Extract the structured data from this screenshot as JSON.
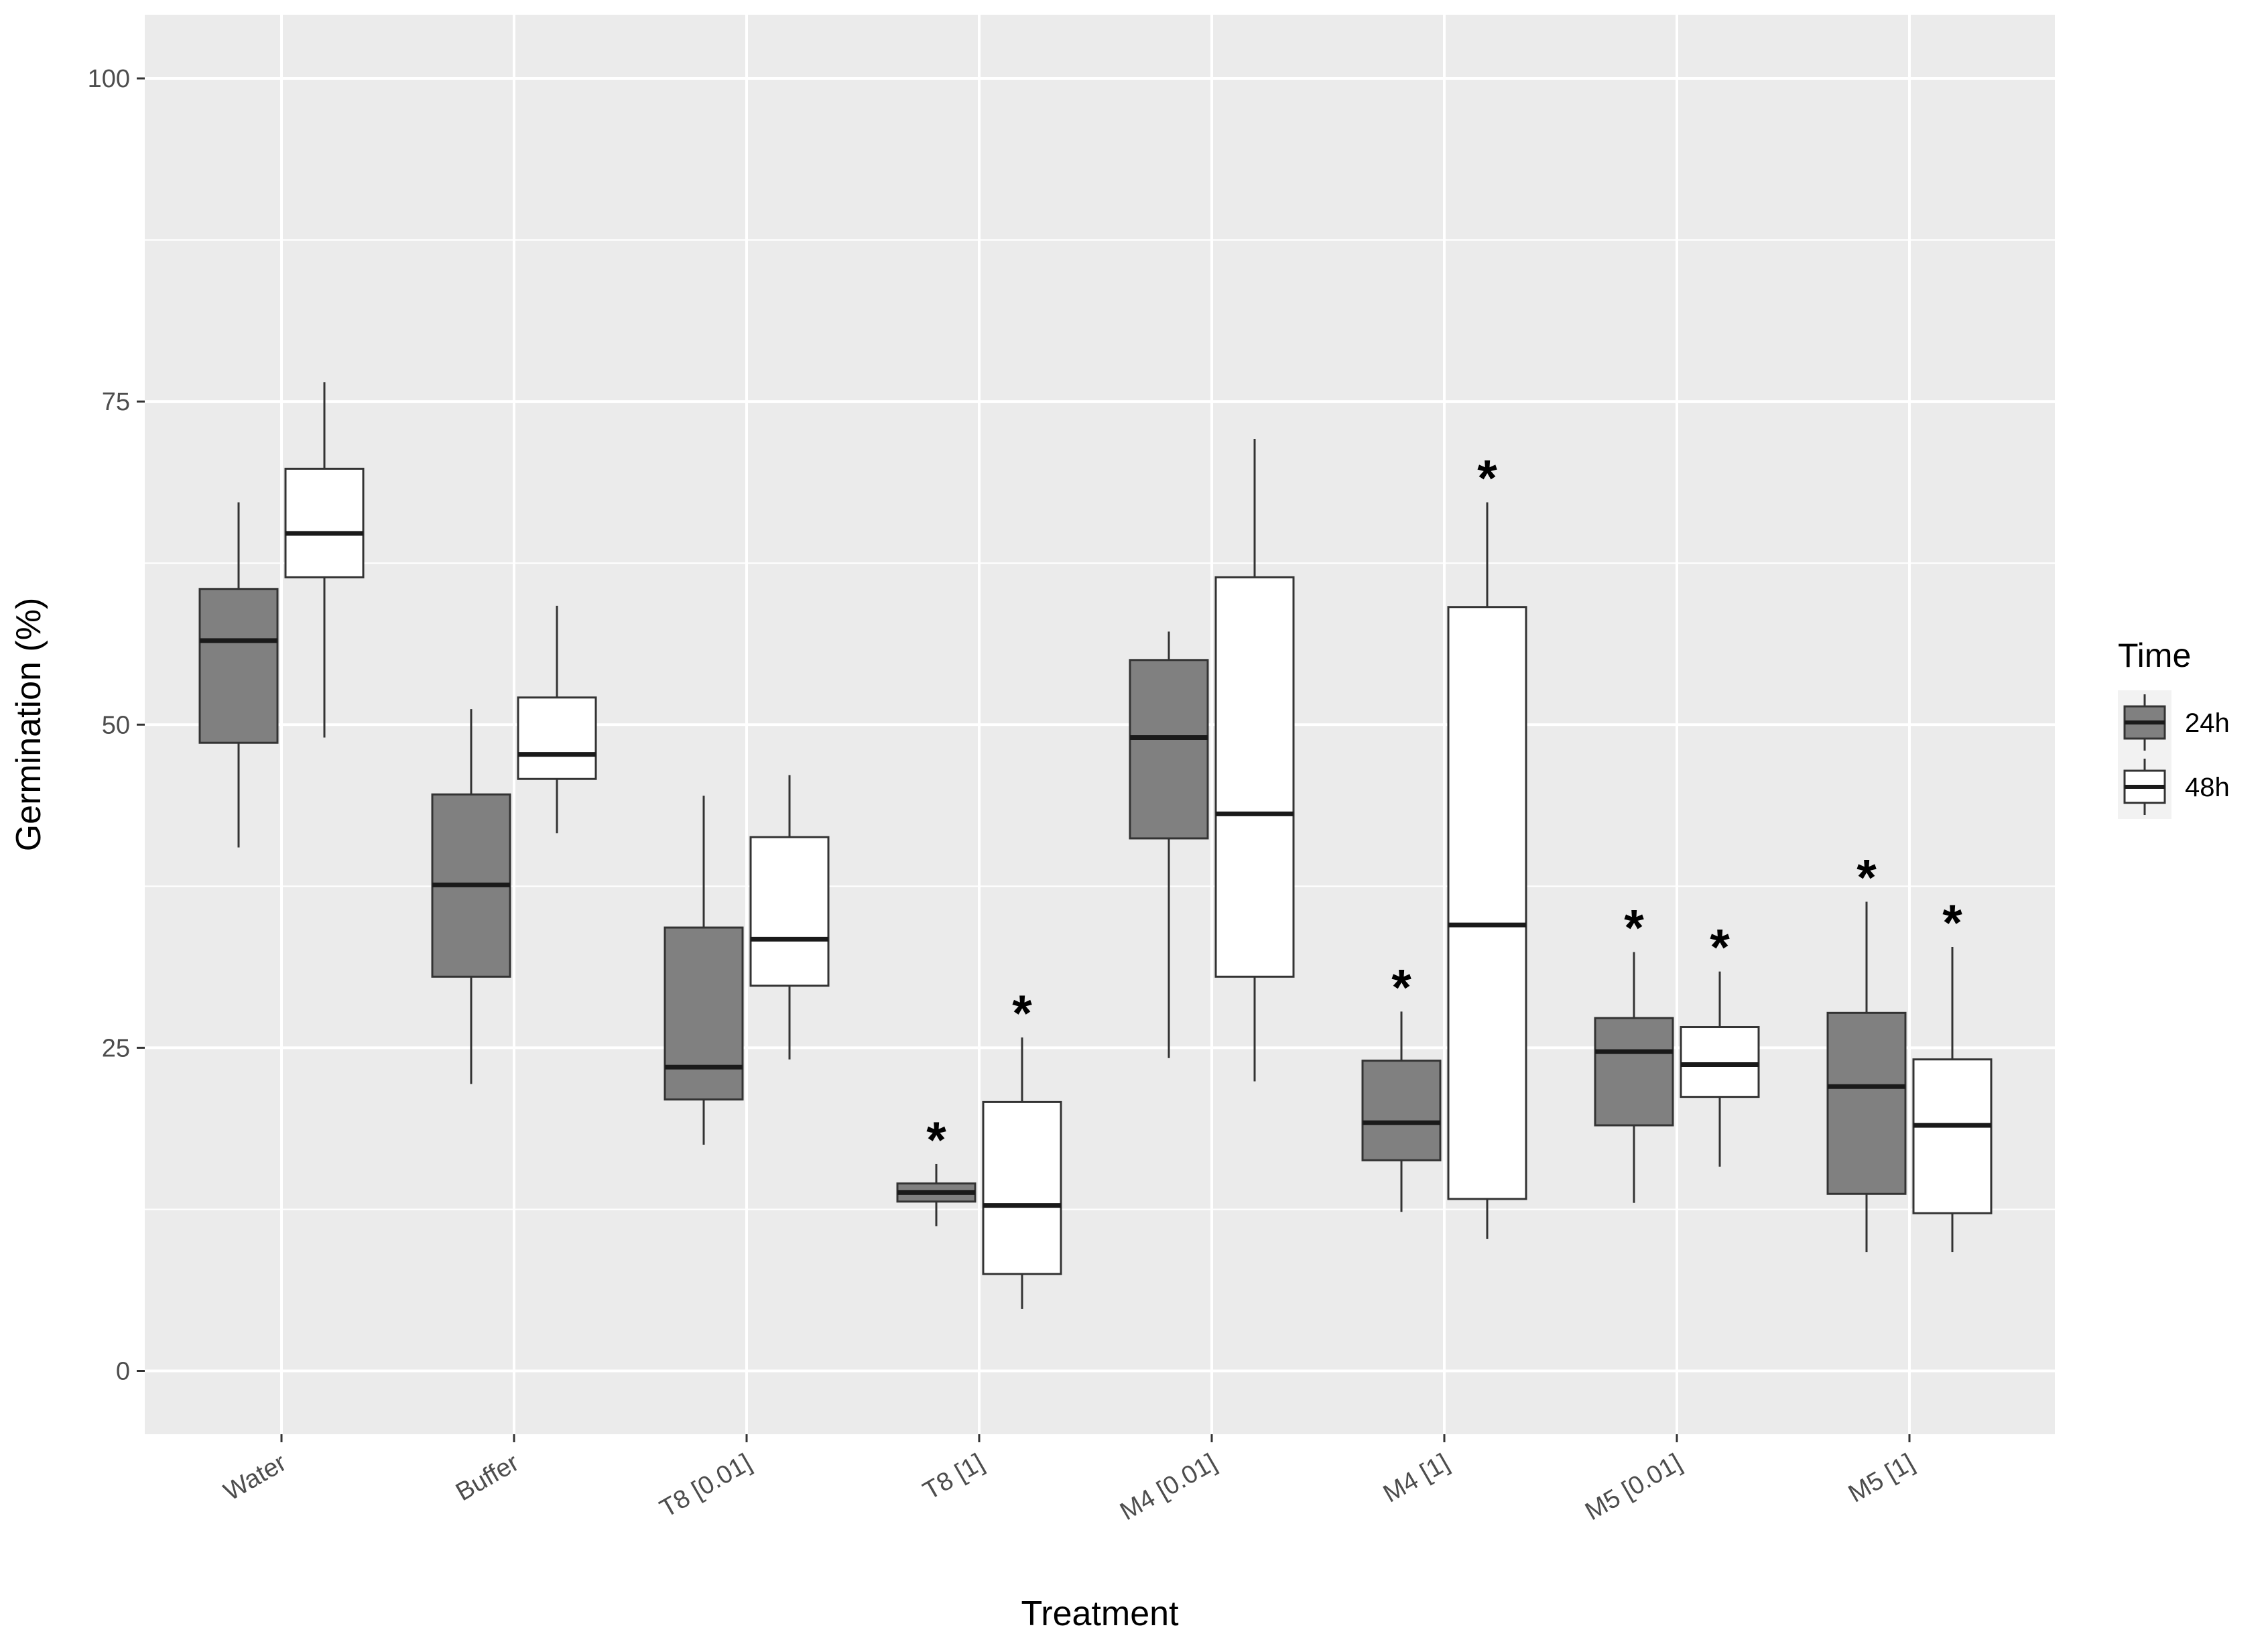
{
  "chart_data": {
    "type": "boxplot",
    "title": "",
    "xlabel": "Treatment",
    "ylabel": "Germination (%)",
    "ylim": [
      -5,
      105
    ],
    "yticks": [
      0,
      25,
      50,
      75,
      100
    ],
    "yticks_labels": [
      "0",
      "25",
      "50",
      "75",
      "100"
    ],
    "grid": true,
    "categories": [
      "Water",
      "Buffer",
      "T8 [0.01]",
      "T8 [1]",
      "M4 [0.01]",
      "M4 [1]",
      "M5 [0.01]",
      "M5 [1]"
    ],
    "legend": {
      "title": "Time",
      "position": "right",
      "entries": [
        "24h",
        "48h"
      ]
    },
    "series": [
      {
        "name": "24h",
        "color": "#808080",
        "boxes": [
          {
            "min": 40.5,
            "q1": 48.6,
            "median": 56.5,
            "q3": 60.5,
            "max": 67.2,
            "sig": ""
          },
          {
            "min": 22.2,
            "q1": 30.5,
            "median": 37.6,
            "q3": 44.6,
            "max": 51.2,
            "sig": ""
          },
          {
            "min": 17.5,
            "q1": 21.0,
            "median": 23.5,
            "q3": 34.3,
            "max": 44.5,
            "sig": ""
          },
          {
            "min": 11.2,
            "q1": 13.1,
            "median": 13.8,
            "q3": 14.5,
            "max": 16.0,
            "sig": "*"
          },
          {
            "min": 24.2,
            "q1": 41.2,
            "median": 49.0,
            "q3": 55.0,
            "max": 57.2,
            "sig": ""
          },
          {
            "min": 12.3,
            "q1": 16.3,
            "median": 19.2,
            "q3": 24.0,
            "max": 27.8,
            "sig": "*"
          },
          {
            "min": 13.0,
            "q1": 19.0,
            "median": 24.7,
            "q3": 27.3,
            "max": 32.4,
            "sig": "*"
          },
          {
            "min": 9.2,
            "q1": 13.7,
            "median": 22.0,
            "q3": 27.7,
            "max": 36.3,
            "sig": "*"
          }
        ]
      },
      {
        "name": "48h",
        "color": "#ffffff",
        "boxes": [
          {
            "min": 49.0,
            "q1": 61.4,
            "median": 64.8,
            "q3": 69.8,
            "max": 76.5,
            "sig": ""
          },
          {
            "min": 41.6,
            "q1": 45.8,
            "median": 47.7,
            "q3": 52.1,
            "max": 59.2,
            "sig": ""
          },
          {
            "min": 24.1,
            "q1": 29.8,
            "median": 33.4,
            "q3": 41.3,
            "max": 46.1,
            "sig": ""
          },
          {
            "min": 4.8,
            "q1": 7.5,
            "median": 12.8,
            "q3": 20.8,
            "max": 25.8,
            "sig": "*"
          },
          {
            "min": 22.4,
            "q1": 30.5,
            "median": 43.1,
            "q3": 61.4,
            "max": 72.1,
            "sig": ""
          },
          {
            "min": 10.2,
            "q1": 13.3,
            "median": 34.5,
            "q3": 59.1,
            "max": 67.2,
            "sig": "*"
          },
          {
            "min": 15.8,
            "q1": 21.2,
            "median": 23.7,
            "q3": 26.6,
            "max": 30.9,
            "sig": "*"
          },
          {
            "min": 9.2,
            "q1": 12.2,
            "median": 19.0,
            "q3": 24.1,
            "max": 32.8,
            "sig": "*"
          }
        ]
      }
    ]
  }
}
